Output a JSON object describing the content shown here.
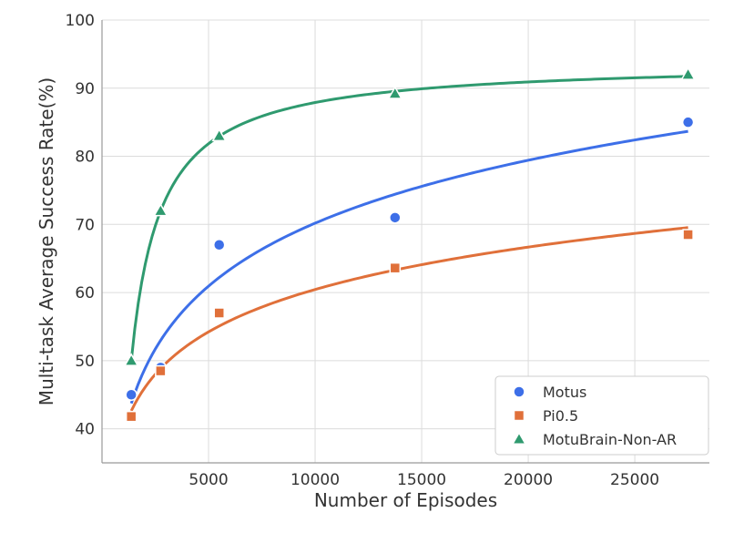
{
  "chart_data": {
    "type": "scatter",
    "title": "",
    "xlabel": "Number of Episodes",
    "ylabel": "Multi-task Average Success Rate(%)",
    "xlim": [
      0,
      28500
    ],
    "ylim": [
      35,
      100
    ],
    "xticks": [
      5000,
      10000,
      15000,
      20000,
      25000
    ],
    "yticks": [
      40,
      50,
      60,
      70,
      80,
      90,
      100
    ],
    "grid": true,
    "legend_position": "lower-right",
    "series": [
      {
        "name": "Motus",
        "marker": "circle",
        "color": "#3d6fe8",
        "x": [
          1375,
          2750,
          5500,
          13750,
          27500
        ],
        "y": [
          45.0,
          49.0,
          67.0,
          71.0,
          85.0
        ],
        "fit": "logarithmic trend curve"
      },
      {
        "name": "Pi0.5",
        "marker": "square",
        "color": "#e0703a",
        "x": [
          1375,
          2750,
          5500,
          13750,
          27500
        ],
        "y": [
          41.8,
          48.5,
          57.0,
          63.6,
          68.5
        ],
        "fit": "logarithmic trend curve"
      },
      {
        "name": "MotuBrain-Non-AR",
        "marker": "triangle",
        "color": "#2f9a6f",
        "x": [
          1375,
          2750,
          5500,
          13750,
          27500
        ],
        "y": [
          50.0,
          72.0,
          83.0,
          89.2,
          92.0
        ],
        "fit": "saturating trend curve"
      }
    ]
  }
}
